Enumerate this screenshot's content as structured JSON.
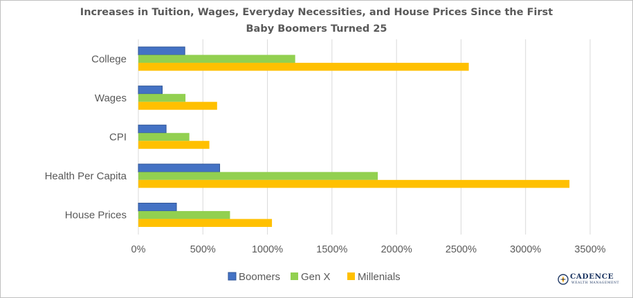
{
  "chart_data": {
    "type": "bar",
    "orientation": "horizontal",
    "title": "Increases in Tuition, Wages, Everyday Necessities, and House Prices Since the First Baby Boomers Turned 25",
    "title_lines": [
      "Increases in Tuition, Wages, Everyday Necessities, and House Prices Since the First",
      "Baby Boomers Turned 25"
    ],
    "categories": [
      "College",
      "Wages",
      "CPI",
      "Health Per Capita",
      "House Prices"
    ],
    "series": [
      {
        "name": "Boomers",
        "values": [
          360,
          185,
          215,
          630,
          295
        ]
      },
      {
        "name": "Gen X",
        "values": [
          1215,
          365,
          395,
          1855,
          710
        ]
      },
      {
        "name": "Millenials",
        "values": [
          2560,
          610,
          550,
          3340,
          1035
        ]
      }
    ],
    "xlim": [
      0,
      3500
    ],
    "x_ticks": [
      0,
      500,
      1000,
      1500,
      2000,
      2500,
      3000,
      3500
    ],
    "x_tick_labels": [
      "0%",
      "500%",
      "1000%",
      "1500%",
      "2000%",
      "2500%",
      "3000%",
      "3500%"
    ],
    "xlabel": "",
    "ylabel": "",
    "grid": true,
    "legend_position": "bottom",
    "colors": {
      "Boomers": "#4472c4",
      "Gen X": "#92d050",
      "Millenials": "#ffc000",
      "boomers_border": "#2f5597"
    }
  },
  "logo": {
    "name": "CADENCE",
    "subtitle": "WEALTH MANAGEMENT",
    "icon": "compass-icon"
  }
}
